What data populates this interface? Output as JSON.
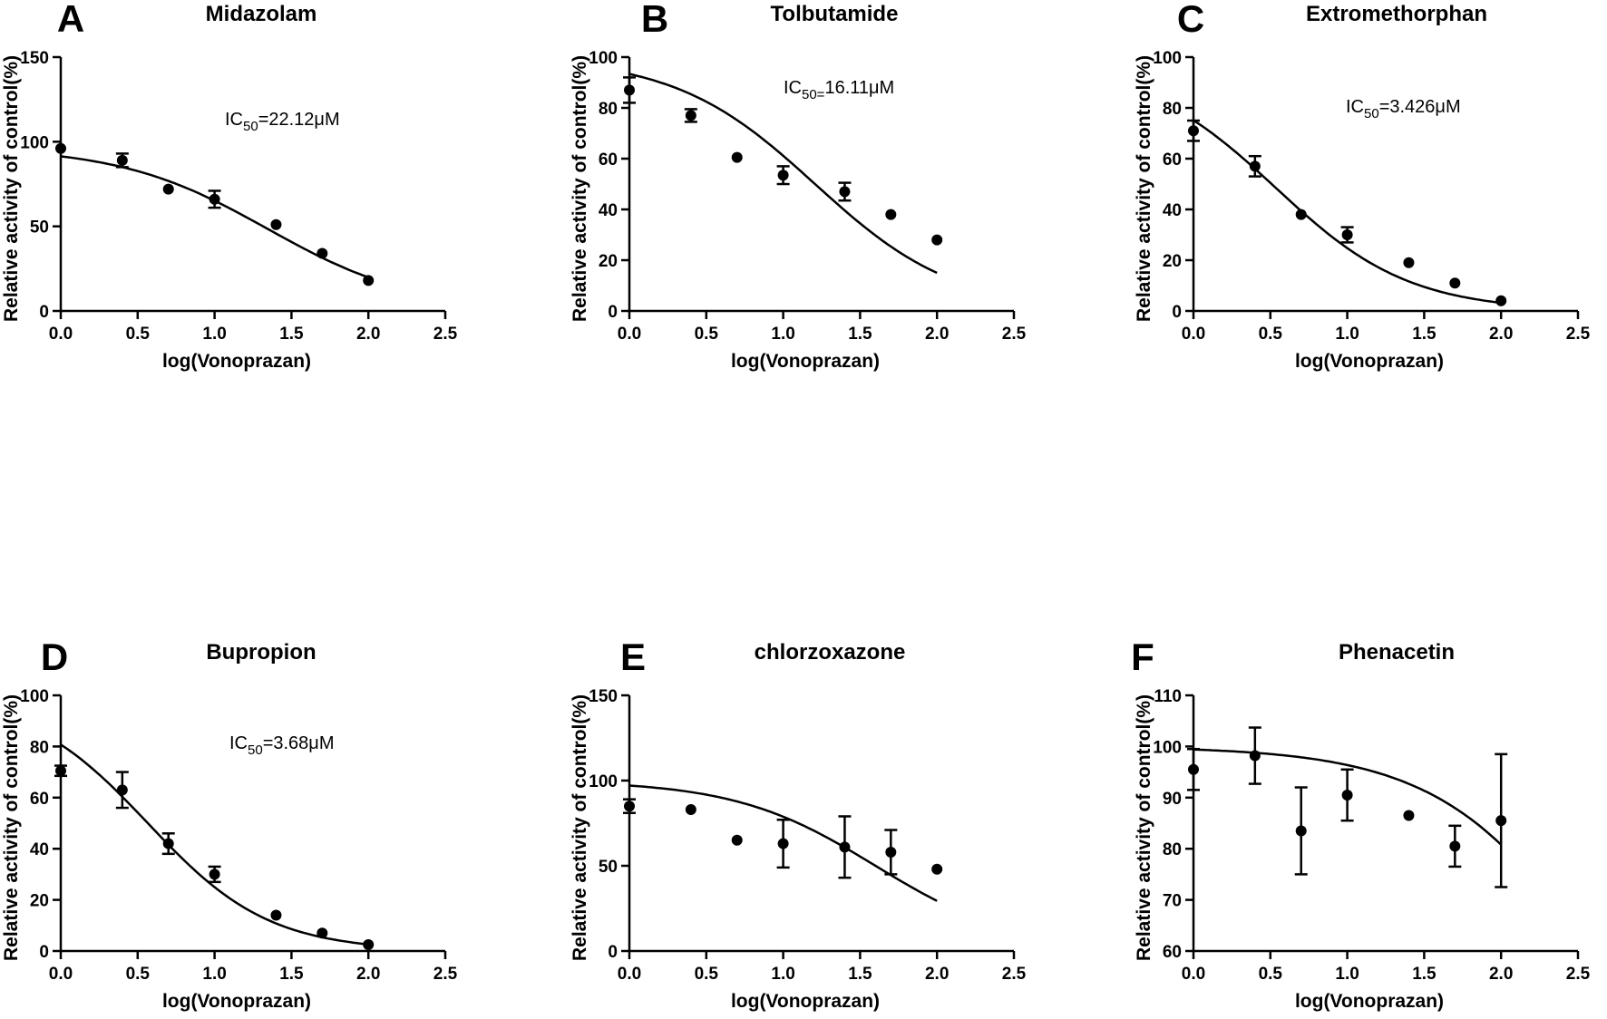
{
  "chart_data": [
    {
      "type": "scatter",
      "letter": "A",
      "title": "Midazolam",
      "xlabel": "log(Vonoprazan)",
      "ylabel": "Relative activity of control(%)",
      "xlim": [
        0,
        2.5
      ],
      "ylim": [
        0,
        150
      ],
      "xticks": [
        "0.0",
        "0.5",
        "1.0",
        "1.5",
        "2.0",
        "2.5"
      ],
      "yticks": [
        "0",
        "50",
        "100",
        "150"
      ],
      "annotation": {
        "prefix": "IC",
        "sub": "50",
        "suffix": "=22.12μM"
      },
      "points": [
        {
          "x": 0.0,
          "y": 96,
          "err": 0
        },
        {
          "x": 0.4,
          "y": 89,
          "err": 4
        },
        {
          "x": 0.7,
          "y": 72,
          "err": 0
        },
        {
          "x": 1.0,
          "y": 66,
          "err": 5
        },
        {
          "x": 1.4,
          "y": 51,
          "err": 0
        },
        {
          "x": 1.7,
          "y": 34,
          "err": 0
        },
        {
          "x": 2.0,
          "y": 18,
          "err": 0
        }
      ],
      "fit": {
        "top": 97,
        "bottom": 0,
        "logIC50": 1.345,
        "hill": 0.9
      }
    },
    {
      "type": "scatter",
      "letter": "B",
      "title": "Tolbutamide",
      "xlabel": "log(Vonoprazan)",
      "ylabel": "Relative activity of control(%)",
      "xlim": [
        0,
        2.5
      ],
      "ylim": [
        0,
        100
      ],
      "xticks": [
        "0.0",
        "0.5",
        "1.0",
        "1.5",
        "2.0",
        "2.5"
      ],
      "yticks": [
        "0",
        "20",
        "40",
        "60",
        "80",
        "100"
      ],
      "annotation": {
        "prefix": "IC",
        "sub": "50=",
        "suffix": "16.11μM"
      },
      "points": [
        {
          "x": 0.0,
          "y": 87,
          "err": 5
        },
        {
          "x": 0.4,
          "y": 77,
          "err": 2.5
        },
        {
          "x": 0.7,
          "y": 60.5,
          "err": 0
        },
        {
          "x": 1.0,
          "y": 53.5,
          "err": 3.5
        },
        {
          "x": 1.4,
          "y": 47,
          "err": 3.5
        },
        {
          "x": 1.7,
          "y": 38,
          "err": 0
        },
        {
          "x": 2.0,
          "y": 28,
          "err": 0
        }
      ],
      "fit": {
        "top": 100,
        "bottom": 0,
        "logIC50": 1.207,
        "hill": 0.95
      }
    },
    {
      "type": "scatter",
      "letter": "C",
      "title": "Extromethorphan",
      "xlabel": "log(Vonoprazan)",
      "ylabel": "Relative activity of control(%)",
      "xlim": [
        0,
        2.5
      ],
      "ylim": [
        0,
        100
      ],
      "xticks": [
        "0.0",
        "0.5",
        "1.0",
        "1.5",
        "2.0",
        "2.5"
      ],
      "yticks": [
        "0",
        "20",
        "40",
        "60",
        "80",
        "100"
      ],
      "annotation": {
        "prefix": "IC",
        "sub": "50",
        "suffix": "=3.426μM"
      },
      "points": [
        {
          "x": 0.0,
          "y": 71,
          "err": 4
        },
        {
          "x": 0.4,
          "y": 57,
          "err": 4
        },
        {
          "x": 0.7,
          "y": 38,
          "err": 0
        },
        {
          "x": 1.0,
          "y": 30,
          "err": 3
        },
        {
          "x": 1.4,
          "y": 19,
          "err": 0
        },
        {
          "x": 1.7,
          "y": 11,
          "err": 0
        },
        {
          "x": 2.0,
          "y": 4,
          "err": 0
        }
      ],
      "fit": {
        "top": 97,
        "bottom": 0,
        "logIC50": 0.535,
        "hill": 1.0
      }
    },
    {
      "type": "scatter",
      "letter": "D",
      "title": "Bupropion",
      "xlabel": "log(Vonoprazan)",
      "ylabel": "Relative activity of control(%)",
      "xlim": [
        0,
        2.5
      ],
      "ylim": [
        0,
        100
      ],
      "xticks": [
        "0.0",
        "0.5",
        "1.0",
        "1.5",
        "2.0",
        "2.5"
      ],
      "yticks": [
        "0",
        "20",
        "40",
        "60",
        "80",
        "100"
      ],
      "annotation": {
        "prefix": "IC",
        "sub": "50",
        "suffix": "=3.68μM"
      },
      "points": [
        {
          "x": 0.0,
          "y": 70.5,
          "err": 2
        },
        {
          "x": 0.4,
          "y": 63,
          "err": 7
        },
        {
          "x": 0.7,
          "y": 42,
          "err": 4
        },
        {
          "x": 1.0,
          "y": 30,
          "err": 3
        },
        {
          "x": 1.4,
          "y": 14,
          "err": 0
        },
        {
          "x": 1.7,
          "y": 7,
          "err": 0
        },
        {
          "x": 2.0,
          "y": 2.5,
          "err": 0
        }
      ],
      "fit": {
        "top": 100,
        "bottom": 0,
        "logIC50": 0.566,
        "hill": 1.1
      }
    },
    {
      "type": "scatter",
      "letter": "E",
      "title": "chlorzoxazone",
      "xlabel": "log(Vonoprazan)",
      "ylabel": "Relative activity of control(%)",
      "xlim": [
        0,
        2.5
      ],
      "ylim": [
        0,
        150
      ],
      "xticks": [
        "0.0",
        "0.5",
        "1.0",
        "1.5",
        "2.0",
        "2.5"
      ],
      "yticks": [
        "0",
        "50",
        "100",
        "150"
      ],
      "annotation": null,
      "points": [
        {
          "x": 0.0,
          "y": 85,
          "err": 4
        },
        {
          "x": 0.4,
          "y": 83,
          "err": 0
        },
        {
          "x": 0.7,
          "y": 65,
          "err": 0
        },
        {
          "x": 1.0,
          "y": 63,
          "err": 14
        },
        {
          "x": 1.4,
          "y": 61,
          "err": 18
        },
        {
          "x": 1.7,
          "y": 58,
          "err": 13
        },
        {
          "x": 2.0,
          "y": 48,
          "err": 0
        }
      ],
      "fit": {
        "top": 100,
        "bottom": 0,
        "logIC50": 1.6,
        "hill": 0.95
      }
    },
    {
      "type": "scatter",
      "letter": "F",
      "title": "Phenacetin",
      "xlabel": "log(Vonoprazan)",
      "ylabel": "Relative activity of control(%)",
      "xlim": [
        0,
        2.5
      ],
      "ylim": [
        60,
        110
      ],
      "xticks": [
        "0.0",
        "0.5",
        "1.0",
        "1.5",
        "2.0",
        "2.5"
      ],
      "yticks": [
        "60",
        "70",
        "80",
        "90",
        "100",
        "110"
      ],
      "annotation": null,
      "points": [
        {
          "x": 0.0,
          "y": 95.5,
          "err": 4
        },
        {
          "x": 0.4,
          "y": 98.2,
          "err": 5.5
        },
        {
          "x": 0.7,
          "y": 83.5,
          "err": 8.5
        },
        {
          "x": 1.0,
          "y": 90.5,
          "err": 5
        },
        {
          "x": 1.4,
          "y": 86.5,
          "err": 0
        },
        {
          "x": 1.7,
          "y": 80.5,
          "err": 4
        },
        {
          "x": 2.0,
          "y": 85.5,
          "err": 13
        }
      ],
      "fit": {
        "top": 100,
        "bottom": 0,
        "logIC50": 2.78,
        "hill": 0.8
      }
    }
  ]
}
